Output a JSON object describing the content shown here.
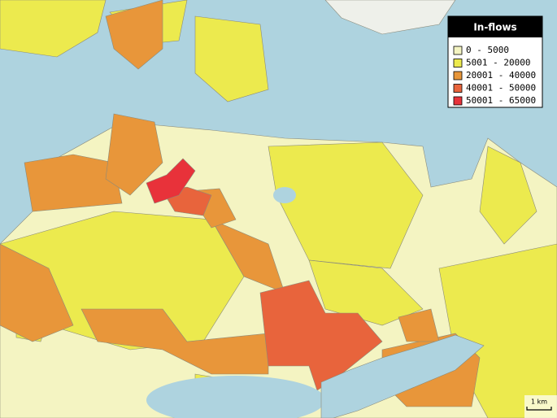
{
  "legend": {
    "title": "In-flows",
    "position": "top-right",
    "items": [
      {
        "label": "0 - 5000",
        "color": "#f4f4c2"
      },
      {
        "label": "5001 - 20000",
        "color": "#ecea4e"
      },
      {
        "label": "20001 - 40000",
        "color": "#e8963a"
      },
      {
        "label": "40001 - 50000",
        "color": "#e8643c"
      },
      {
        "label": "50001 - 65000",
        "color": "#e8323a"
      }
    ]
  },
  "scale_bar": "1 km"
}
